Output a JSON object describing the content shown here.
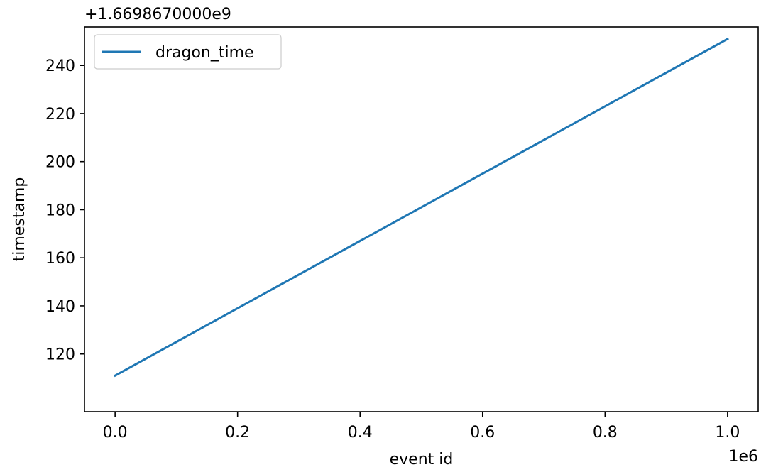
{
  "chart_data": {
    "type": "line",
    "title": "",
    "xlabel": "event id",
    "ylabel": "timestamp",
    "x_offset_label": "1e6",
    "y_offset_label": "+1.6698670000e9",
    "xlim": [
      -0.05,
      1.05
    ],
    "ylim": [
      96,
      256
    ],
    "x_ticks": [
      0.0,
      0.2,
      0.4,
      0.6,
      0.8,
      1.0
    ],
    "x_tick_labels": [
      "0.0",
      "0.2",
      "0.4",
      "0.6",
      "0.8",
      "1.0"
    ],
    "y_ticks": [
      120,
      140,
      160,
      180,
      200,
      220,
      240
    ],
    "y_tick_labels": [
      "120",
      "140",
      "160",
      "180",
      "200",
      "220",
      "240"
    ],
    "grid": false,
    "legend_position": "upper-left",
    "series": [
      {
        "name": "dragon_time",
        "color": "#1f77b4",
        "x": [
          0.0,
          1.0
        ],
        "y": [
          111,
          251
        ]
      }
    ]
  }
}
